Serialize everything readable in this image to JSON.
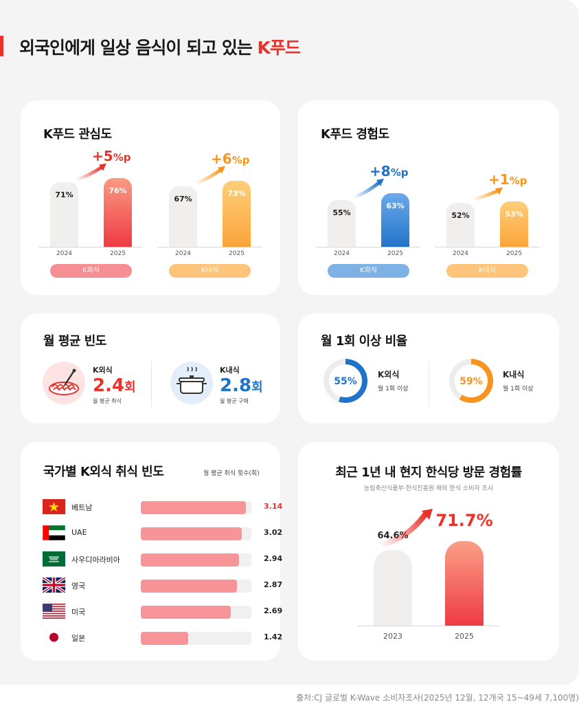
{
  "header": {
    "title_main": "외국인에게 일상 음식이 되고 있는 ",
    "title_accent": "K푸드"
  },
  "colors": {
    "red": "#e8322b",
    "orange": "#f7941d",
    "blue": "#1f73c8",
    "pink_pill": "#f58f94",
    "orange_pill": "#fdc57c",
    "blue_pill": "#7eb2e4",
    "gray_bar": "#f1efee"
  },
  "interest": {
    "title": "K푸드 관심도",
    "groups": [
      {
        "label": "K외식",
        "delta_num": "+5",
        "delta_unit": "%p",
        "years": [
          "2024",
          "2025"
        ],
        "values": [
          71,
          76
        ],
        "value_labels": [
          "71%",
          "76%"
        ]
      },
      {
        "label": "K내식",
        "delta_num": "+6",
        "delta_unit": "%p",
        "years": [
          "2024",
          "2025"
        ],
        "values": [
          67,
          73
        ],
        "value_labels": [
          "67%",
          "73%"
        ]
      }
    ]
  },
  "experience": {
    "title": "K푸드 경험도",
    "groups": [
      {
        "label": "K외식",
        "delta_num": "+8",
        "delta_unit": "%p",
        "years": [
          "2024",
          "2025"
        ],
        "values": [
          55,
          63
        ],
        "value_labels": [
          "55%",
          "63%"
        ]
      },
      {
        "label": "K내식",
        "delta_num": "+1",
        "delta_unit": "%p",
        "years": [
          "2024",
          "2025"
        ],
        "values": [
          52,
          53
        ],
        "value_labels": [
          "52%",
          "53%"
        ]
      }
    ]
  },
  "frequency": {
    "title": "월 평균 빈도",
    "items": [
      {
        "label": "K외식",
        "value": "2.4",
        "unit": "회",
        "note": "월 평균 취식",
        "icon": "spaghetti-icon"
      },
      {
        "label": "K내식",
        "value": "2.8",
        "unit": "회",
        "note": "월 평균 구매",
        "icon": "pot-icon"
      }
    ]
  },
  "monthly_ratio": {
    "title": "월 1회 이상 비율",
    "items": [
      {
        "label": "K외식",
        "value": 55,
        "value_label": "55%",
        "note": "월 1회 이상"
      },
      {
        "label": "K내식",
        "value": 59,
        "value_label": "59%",
        "note": "월 1회 이상"
      }
    ]
  },
  "by_country": {
    "title": "국가별 K외식 취식 빈도",
    "unit_note": "월 평균 취식 횟수(회)",
    "max": 3.3,
    "rows": [
      {
        "name": "베트남",
        "value": 3.14,
        "value_label": "3.14",
        "flag": "vietnam-flag-icon"
      },
      {
        "name": "UAE",
        "value": 3.02,
        "value_label": "3.02",
        "flag": "uae-flag-icon"
      },
      {
        "name": "사우디아라비아",
        "value": 2.94,
        "value_label": "2.94",
        "flag": "saudi-flag-icon"
      },
      {
        "name": "영국",
        "value": 2.87,
        "value_label": "2.87",
        "flag": "uk-flag-icon"
      },
      {
        "name": "미국",
        "value": 2.69,
        "value_label": "2.69",
        "flag": "usa-flag-icon"
      },
      {
        "name": "일본",
        "value": 1.42,
        "value_label": "1.42",
        "flag": "japan-flag-icon"
      }
    ]
  },
  "visit": {
    "title": "최근 1년 내 현지 한식당 방문 경험률",
    "subtitle": "농림축산식품부·한식진흥원 해외 한식 소비자 조사",
    "years": [
      "2023",
      "2025"
    ],
    "values": [
      64.6,
      71.7
    ],
    "value_labels": [
      "64.6%",
      "71.7%"
    ]
  },
  "chart_data": [
    {
      "type": "bar",
      "title": "K푸드 관심도",
      "series": [
        {
          "name": "K외식",
          "categories": [
            "2024",
            "2025"
          ],
          "values": [
            71,
            76
          ]
        },
        {
          "name": "K내식",
          "categories": [
            "2024",
            "2025"
          ],
          "values": [
            67,
            73
          ]
        }
      ]
    },
    {
      "type": "bar",
      "title": "K푸드 경험도",
      "series": [
        {
          "name": "K외식",
          "categories": [
            "2024",
            "2025"
          ],
          "values": [
            55,
            63
          ]
        },
        {
          "name": "K내식",
          "categories": [
            "2024",
            "2025"
          ],
          "values": [
            52,
            53
          ]
        }
      ]
    },
    {
      "type": "pie",
      "title": "월 1회 이상 비율",
      "series": [
        {
          "name": "K외식",
          "values": [
            55
          ]
        },
        {
          "name": "K내식",
          "values": [
            59
          ]
        }
      ]
    },
    {
      "type": "bar",
      "title": "국가별 K외식 취식 빈도",
      "categories": [
        "베트남",
        "UAE",
        "사우디아라비아",
        "영국",
        "미국",
        "일본"
      ],
      "values": [
        3.14,
        3.02,
        2.94,
        2.87,
        2.69,
        1.42
      ]
    },
    {
      "type": "bar",
      "title": "최근 1년 내 현지 한식당 방문 경험률",
      "categories": [
        "2023",
        "2025"
      ],
      "values": [
        64.6,
        71.7
      ]
    }
  ],
  "footer": {
    "source": "출처:CJ 글로벌 K-Wave 소비자조사(2025년 12월, 12개국 15~49세 7,100명)"
  }
}
